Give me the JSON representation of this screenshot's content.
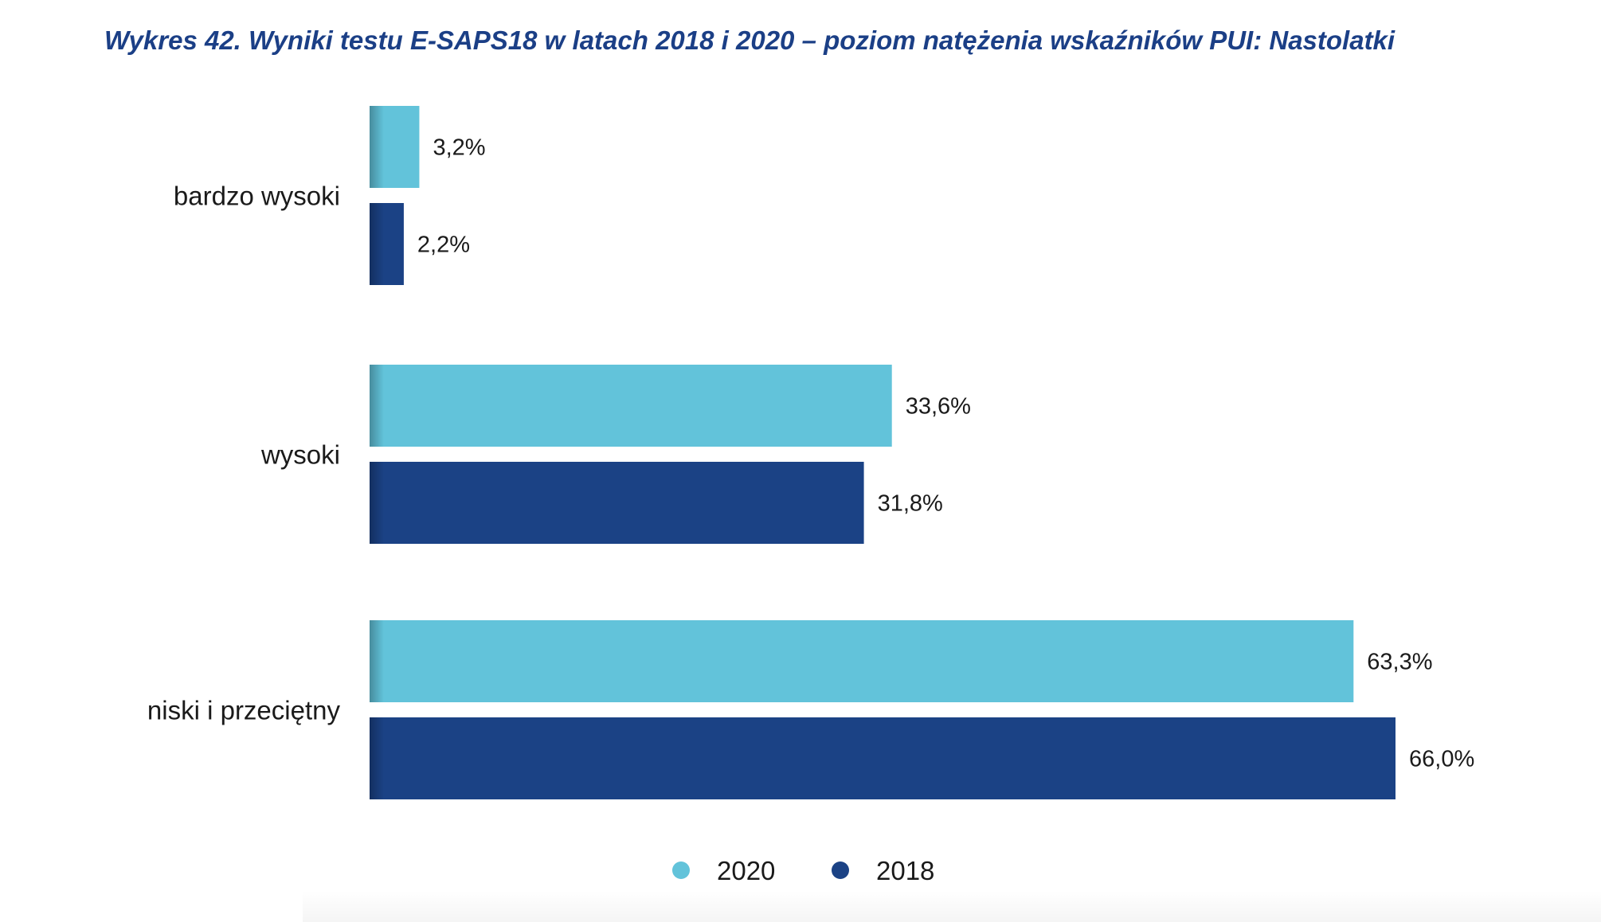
{
  "chart_data": {
    "type": "bar",
    "orientation": "horizontal",
    "title": "Wykres 42. Wyniki testu E-SAPS18 w latach 2018 i 2020 – poziom natężenia wskaźników PUI: Nastolatki",
    "categories": [
      "bardzo wysoki",
      "wysoki",
      "niski i przeciętny"
    ],
    "series": [
      {
        "name": "2020",
        "color": "#62c3da",
        "values": [
          3.2,
          33.6,
          63.3
        ],
        "labels": [
          "3,2%",
          "33,6%",
          "63,3%"
        ]
      },
      {
        "name": "2018",
        "color": "#1b4285",
        "values": [
          2.2,
          31.8,
          66.0
        ],
        "labels": [
          "2,2%",
          "31,8%",
          "66,0%"
        ]
      }
    ],
    "xlim": [
      0,
      66
    ],
    "grid": false,
    "legend_position": "bottom-center"
  }
}
